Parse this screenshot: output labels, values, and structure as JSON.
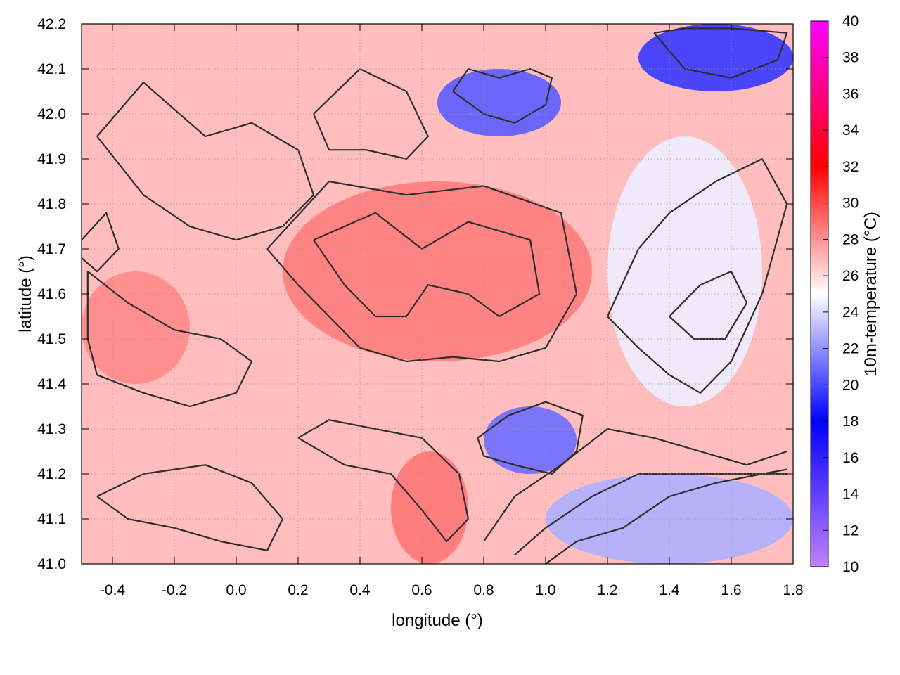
{
  "chart_data": {
    "type": "heatmap",
    "xlabel": "longitude (°)",
    "ylabel": "latitude (°)",
    "colorbar_label": "10m-temperature (°C)",
    "xlim": [
      -0.5,
      1.8
    ],
    "ylim": [
      41.0,
      42.2
    ],
    "clim": [
      10,
      40
    ],
    "x_ticks": [
      "-0.4",
      "-0.2",
      "0.0",
      "0.2",
      "0.4",
      "0.6",
      "0.8",
      "1.0",
      "1.2",
      "1.4",
      "1.6",
      "1.8"
    ],
    "y_ticks": [
      "41.0",
      "41.1",
      "41.2",
      "41.3",
      "41.4",
      "41.5",
      "41.6",
      "41.7",
      "41.8",
      "41.9",
      "42.0",
      "42.1",
      "42.2"
    ],
    "colorbar_ticks": [
      "10",
      "12",
      "14",
      "16",
      "18",
      "20",
      "22",
      "24",
      "26",
      "28",
      "30",
      "32",
      "34",
      "36",
      "38",
      "40"
    ],
    "grid": true,
    "colormap": [
      {
        "value": 10,
        "color": "#c080ff"
      },
      {
        "value": 18,
        "color": "#0000ff"
      },
      {
        "value": 25,
        "color": "#ffffff"
      },
      {
        "value": 32,
        "color": "#ff0000"
      },
      {
        "value": 40,
        "color": "#ff00ff"
      }
    ],
    "field_regions": [
      {
        "name": "background",
        "temperature": 26.8
      },
      {
        "name": "central-warm-core",
        "temperature": 28.6,
        "lon": [
          0.15,
          1.15
        ],
        "lat": [
          41.45,
          41.85
        ]
      },
      {
        "name": "western-warm-zone",
        "temperature": 28.2,
        "lon": [
          -0.5,
          -0.15
        ],
        "lat": [
          41.4,
          41.65
        ]
      },
      {
        "name": "southern-warm-zone",
        "temperature": 28.8,
        "lon": [
          0.5,
          0.75
        ],
        "lat": [
          41.0,
          41.25
        ]
      },
      {
        "name": "north-east-cool-zone",
        "temperature": 19.5,
        "lon": [
          1.3,
          1.8
        ],
        "lat": [
          42.05,
          42.2
        ]
      },
      {
        "name": "north-central-cool-zone",
        "temperature": 20.5,
        "lon": [
          0.65,
          1.05
        ],
        "lat": [
          41.95,
          42.1
        ]
      },
      {
        "name": "south-east-cool-zone",
        "temperature": 21.0,
        "lon": [
          0.8,
          1.1
        ],
        "lat": [
          41.2,
          41.35
        ]
      },
      {
        "name": "sea-area",
        "temperature": 22.8,
        "lon": [
          1.0,
          1.8
        ],
        "lat": [
          41.0,
          41.2
        ]
      },
      {
        "name": "eastern-mild-zone",
        "temperature": 24.5,
        "lon": [
          1.2,
          1.7
        ],
        "lat": [
          41.35,
          41.95
        ]
      }
    ],
    "contours": [
      {
        "name": "contour-central-1",
        "points": [
          [
            0.1,
            41.7
          ],
          [
            0.3,
            41.85
          ],
          [
            0.55,
            41.82
          ],
          [
            0.8,
            41.84
          ],
          [
            1.05,
            41.78
          ],
          [
            1.1,
            41.6
          ],
          [
            1.0,
            41.48
          ],
          [
            0.85,
            41.45
          ],
          [
            0.7,
            41.46
          ],
          [
            0.55,
            41.45
          ],
          [
            0.4,
            41.48
          ],
          [
            0.3,
            41.55
          ],
          [
            0.2,
            41.62
          ],
          [
            0.1,
            41.7
          ]
        ]
      },
      {
        "name": "contour-central-2",
        "points": [
          [
            0.25,
            41.72
          ],
          [
            0.45,
            41.78
          ],
          [
            0.6,
            41.7
          ],
          [
            0.75,
            41.76
          ],
          [
            0.95,
            41.72
          ],
          [
            0.98,
            41.6
          ],
          [
            0.85,
            41.55
          ],
          [
            0.75,
            41.6
          ],
          [
            0.62,
            41.62
          ],
          [
            0.55,
            41.55
          ],
          [
            0.45,
            41.55
          ],
          [
            0.35,
            41.62
          ],
          [
            0.25,
            41.72
          ]
        ]
      },
      {
        "name": "contour-west-1",
        "points": [
          [
            -0.45,
            41.95
          ],
          [
            -0.3,
            42.07
          ],
          [
            -0.1,
            41.95
          ],
          [
            0.05,
            41.98
          ],
          [
            0.2,
            41.92
          ],
          [
            0.25,
            41.82
          ],
          [
            0.15,
            41.75
          ],
          [
            0.0,
            41.72
          ],
          [
            -0.15,
            41.75
          ],
          [
            -0.3,
            41.82
          ],
          [
            -0.45,
            41.95
          ]
        ]
      },
      {
        "name": "contour-west-2",
        "points": [
          [
            -0.48,
            41.65
          ],
          [
            -0.35,
            41.58
          ],
          [
            -0.2,
            41.52
          ],
          [
            -0.05,
            41.5
          ],
          [
            0.05,
            41.45
          ],
          [
            0.0,
            41.38
          ],
          [
            -0.15,
            41.35
          ],
          [
            -0.3,
            41.38
          ],
          [
            -0.45,
            41.42
          ],
          [
            -0.48,
            41.5
          ],
          [
            -0.48,
            41.65
          ]
        ]
      },
      {
        "name": "contour-south-1",
        "points": [
          [
            0.2,
            41.28
          ],
          [
            0.35,
            41.22
          ],
          [
            0.5,
            41.2
          ],
          [
            0.6,
            41.12
          ],
          [
            0.68,
            41.05
          ],
          [
            0.75,
            41.1
          ],
          [
            0.72,
            41.2
          ],
          [
            0.6,
            41.28
          ],
          [
            0.45,
            41.3
          ],
          [
            0.3,
            41.32
          ],
          [
            0.2,
            41.28
          ]
        ]
      },
      {
        "name": "contour-southwest",
        "points": [
          [
            -0.45,
            41.15
          ],
          [
            -0.3,
            41.2
          ],
          [
            -0.1,
            41.22
          ],
          [
            0.05,
            41.18
          ],
          [
            0.15,
            41.1
          ],
          [
            0.1,
            41.03
          ],
          [
            -0.05,
            41.05
          ],
          [
            -0.2,
            41.08
          ],
          [
            -0.35,
            41.1
          ],
          [
            -0.45,
            41.15
          ]
        ]
      },
      {
        "name": "contour-northeast-cool",
        "points": [
          [
            1.35,
            42.18
          ],
          [
            1.45,
            42.1
          ],
          [
            1.6,
            42.08
          ],
          [
            1.75,
            42.12
          ],
          [
            1.78,
            42.18
          ],
          [
            1.6,
            42.19
          ],
          [
            1.45,
            42.19
          ],
          [
            1.35,
            42.18
          ]
        ]
      },
      {
        "name": "contour-north-central-cool",
        "points": [
          [
            0.7,
            42.05
          ],
          [
            0.8,
            42.0
          ],
          [
            0.9,
            41.98
          ],
          [
            1.0,
            42.02
          ],
          [
            1.02,
            42.08
          ],
          [
            0.95,
            42.1
          ],
          [
            0.85,
            42.08
          ],
          [
            0.75,
            42.1
          ],
          [
            0.7,
            42.05
          ]
        ]
      },
      {
        "name": "contour-north-mid",
        "points": [
          [
            0.25,
            42.0
          ],
          [
            0.4,
            42.1
          ],
          [
            0.55,
            42.05
          ],
          [
            0.62,
            41.95
          ],
          [
            0.55,
            41.9
          ],
          [
            0.42,
            41.92
          ],
          [
            0.3,
            41.92
          ],
          [
            0.25,
            42.0
          ]
        ]
      },
      {
        "name": "contour-southeast-cool",
        "points": [
          [
            0.78,
            41.28
          ],
          [
            0.88,
            41.33
          ],
          [
            1.0,
            41.36
          ],
          [
            1.12,
            41.33
          ],
          [
            1.1,
            41.25
          ],
          [
            1.02,
            41.2
          ],
          [
            0.9,
            41.22
          ],
          [
            0.8,
            41.24
          ],
          [
            0.78,
            41.28
          ]
        ]
      },
      {
        "name": "contour-coast-1",
        "points": [
          [
            0.8,
            41.05
          ],
          [
            0.9,
            41.15
          ],
          [
            1.05,
            41.22
          ],
          [
            1.2,
            41.3
          ],
          [
            1.35,
            41.28
          ],
          [
            1.5,
            41.25
          ],
          [
            1.65,
            41.22
          ],
          [
            1.78,
            41.25
          ]
        ]
      },
      {
        "name": "contour-coast-2",
        "points": [
          [
            0.9,
            41.02
          ],
          [
            1.0,
            41.08
          ],
          [
            1.15,
            41.15
          ],
          [
            1.3,
            41.2
          ],
          [
            1.45,
            41.2
          ],
          [
            1.6,
            41.2
          ],
          [
            1.78,
            41.2
          ]
        ]
      },
      {
        "name": "contour-coast-3",
        "points": [
          [
            1.0,
            41.0
          ],
          [
            1.1,
            41.05
          ],
          [
            1.25,
            41.08
          ],
          [
            1.4,
            41.15
          ],
          [
            1.55,
            41.18
          ],
          [
            1.7,
            41.2
          ],
          [
            1.78,
            41.21
          ]
        ]
      },
      {
        "name": "contour-east-mild",
        "points": [
          [
            1.2,
            41.55
          ],
          [
            1.3,
            41.7
          ],
          [
            1.4,
            41.78
          ],
          [
            1.55,
            41.85
          ],
          [
            1.7,
            41.9
          ],
          [
            1.78,
            41.8
          ],
          [
            1.7,
            41.6
          ],
          [
            1.6,
            41.45
          ],
          [
            1.5,
            41.38
          ],
          [
            1.4,
            41.42
          ],
          [
            1.3,
            41.48
          ],
          [
            1.2,
            41.55
          ]
        ]
      },
      {
        "name": "contour-east-inner",
        "points": [
          [
            1.4,
            41.55
          ],
          [
            1.5,
            41.62
          ],
          [
            1.6,
            41.65
          ],
          [
            1.65,
            41.58
          ],
          [
            1.58,
            41.5
          ],
          [
            1.48,
            41.5
          ],
          [
            1.4,
            41.55
          ]
        ]
      },
      {
        "name": "contour-left-edge",
        "points": [
          [
            -0.5,
            41.72
          ],
          [
            -0.42,
            41.78
          ],
          [
            -0.38,
            41.7
          ],
          [
            -0.45,
            41.65
          ],
          [
            -0.5,
            41.68
          ]
        ]
      }
    ]
  }
}
